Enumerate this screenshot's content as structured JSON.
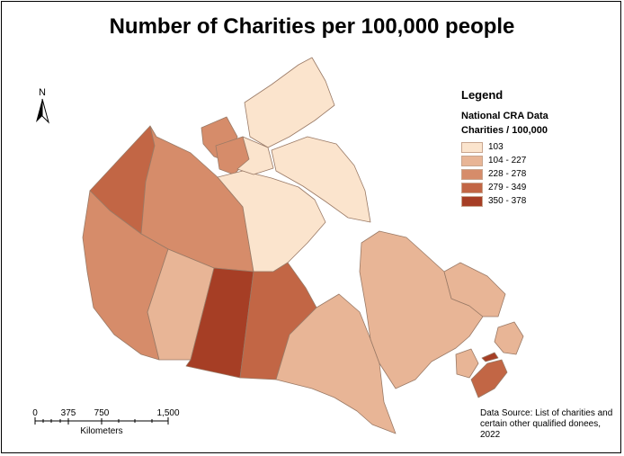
{
  "title": "Number of Charities per 100,000 people",
  "legend": {
    "title": "Legend",
    "layer": "National CRA Data",
    "field": "Charities / 100,000",
    "classes": [
      {
        "label": "103",
        "color": "#fbe4cd"
      },
      {
        "label": "104 - 227",
        "color": "#e8b596"
      },
      {
        "label": "228 - 278",
        "color": "#d68c6a"
      },
      {
        "label": "279 - 349",
        "color": "#c26645"
      },
      {
        "label": "350 - 378",
        "color": "#a63e25"
      }
    ]
  },
  "north_arrow": {
    "label": "N"
  },
  "scale_bar": {
    "ticks": [
      "0",
      "375",
      "750",
      "1,500"
    ],
    "unit": "Kilometers"
  },
  "source": {
    "line1": "Data Source: List of charities and",
    "line2": "certain other qualified donees, 2022"
  },
  "regions": [
    {
      "name": "Yukon",
      "class": 3
    },
    {
      "name": "Northwest Territories",
      "class": 2
    },
    {
      "name": "Nunavut",
      "class": 0
    },
    {
      "name": "British Columbia",
      "class": 2
    },
    {
      "name": "Alberta",
      "class": 1
    },
    {
      "name": "Saskatchewan",
      "class": 4
    },
    {
      "name": "Manitoba",
      "class": 3
    },
    {
      "name": "Ontario",
      "class": 1
    },
    {
      "name": "Quebec",
      "class": 1
    },
    {
      "name": "Newfoundland and Labrador",
      "class": 1
    },
    {
      "name": "New Brunswick",
      "class": 1
    },
    {
      "name": "Nova Scotia",
      "class": 3
    },
    {
      "name": "Prince Edward Island",
      "class": 4
    }
  ]
}
